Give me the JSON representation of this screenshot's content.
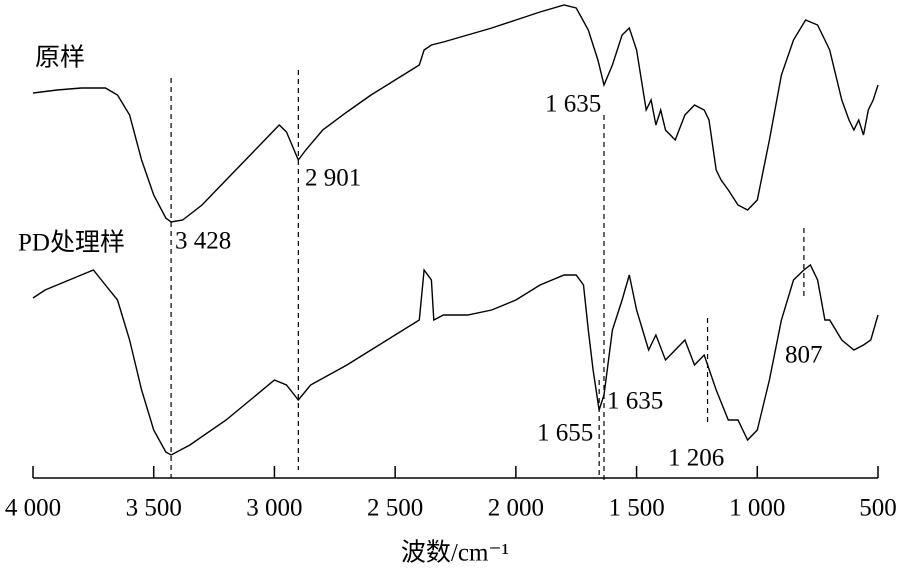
{
  "chart_data": {
    "type": "line",
    "x_label": "波数/cm⁻¹",
    "xlim": [
      4000,
      500
    ],
    "xticks": [
      {
        "value": 4000,
        "label": "4 000"
      },
      {
        "value": 3500,
        "label": "3 500"
      },
      {
        "value": 3000,
        "label": "3 000"
      },
      {
        "value": 2500,
        "label": "2 500"
      },
      {
        "value": 2000,
        "label": "2 000"
      },
      {
        "value": 1500,
        "label": "1 500"
      },
      {
        "value": 1000,
        "label": "1 000"
      },
      500
    ],
    "ylim": [
      0,
      478
    ],
    "grid": false,
    "series": [
      {
        "name": "原样",
        "color": "#000000",
        "x": [
          4000,
          3900,
          3800,
          3700,
          3650,
          3600,
          3550,
          3500,
          3450,
          3428,
          3380,
          3300,
          3200,
          3100,
          3000,
          2980,
          2950,
          2901,
          2870,
          2800,
          2700,
          2600,
          2500,
          2400,
          2380,
          2350,
          2300,
          2200,
          2100,
          2000,
          1900,
          1800,
          1750,
          1700,
          1660,
          1635,
          1600,
          1560,
          1530,
          1500,
          1460,
          1440,
          1420,
          1400,
          1380,
          1340,
          1300,
          1260,
          1220,
          1200,
          1170,
          1150,
          1120,
          1080,
          1040,
          1000,
          950,
          900,
          850,
          800,
          750,
          700,
          680,
          650,
          620,
          600,
          580,
          560,
          540,
          520,
          500
        ],
        "values": [
          385,
          388,
          390,
          390,
          383,
          363,
          318,
          283,
          260,
          256,
          258,
          273,
          298,
          323,
          348,
          353,
          346,
          318,
          328,
          348,
          366,
          383,
          398,
          413,
          428,
          433,
          436,
          443,
          450,
          458,
          466,
          473,
          470,
          448,
          418,
          393,
          413,
          443,
          450,
          428,
          368,
          378,
          353,
          368,
          348,
          338,
          363,
          373,
          368,
          358,
          308,
          298,
          288,
          273,
          268,
          278,
          338,
          403,
          438,
          458,
          453,
          428,
          408,
          378,
          358,
          348,
          358,
          343,
          368,
          378,
          393
        ]
      },
      {
        "name": "PD处理样",
        "color": "#000000",
        "x": [
          4000,
          3950,
          3900,
          3850,
          3800,
          3750,
          3700,
          3650,
          3600,
          3550,
          3500,
          3450,
          3428,
          3350,
          3200,
          3100,
          3000,
          2950,
          2901,
          2850,
          2700,
          2600,
          2500,
          2400,
          2380,
          2350,
          2340,
          2300,
          2200,
          2100,
          2000,
          1900,
          1800,
          1750,
          1720,
          1700,
          1680,
          1655,
          1635,
          1600,
          1560,
          1530,
          1500,
          1450,
          1420,
          1380,
          1340,
          1300,
          1260,
          1220,
          1206,
          1170,
          1120,
          1080,
          1040,
          1000,
          950,
          900,
          850,
          807,
          780,
          750,
          720,
          700,
          650,
          600,
          560,
          530,
          500
        ],
        "values": [
          180,
          188,
          193,
          198,
          203,
          208,
          193,
          178,
          138,
          88,
          48,
          26,
          23,
          33,
          58,
          78,
          98,
          93,
          78,
          93,
          113,
          128,
          143,
          158,
          208,
          198,
          158,
          163,
          163,
          168,
          178,
          193,
          203,
          203,
          193,
          148,
          108,
          68,
          83,
          148,
          178,
          203,
          168,
          128,
          143,
          118,
          128,
          138,
          113,
          123,
          113,
          88,
          58,
          58,
          38,
          48,
          98,
          158,
          198,
          208,
          213,
          198,
          158,
          158,
          138,
          128,
          133,
          138,
          163
        ]
      }
    ],
    "annotations": [
      {
        "x": 3428,
        "label": "3 428"
      },
      {
        "x": 2901,
        "label": "2 901"
      },
      {
        "x": 1635,
        "label": "1 635"
      },
      {
        "x": 1635,
        "label": "1 635"
      },
      {
        "x": 1655,
        "label": "1 655"
      },
      {
        "x": 1206,
        "label": "1 206"
      },
      {
        "x": 807,
        "label": "807"
      }
    ]
  }
}
